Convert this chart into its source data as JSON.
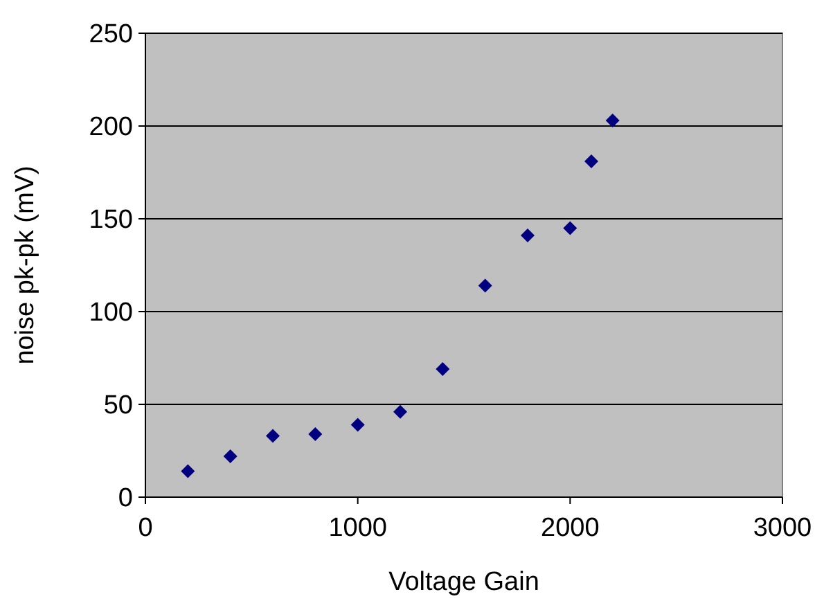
{
  "chart_data": {
    "type": "scatter",
    "xlabel": "Voltage Gain",
    "ylabel": "noise pk-pk (mV)",
    "x": [
      200,
      400,
      600,
      800,
      1000,
      1200,
      1400,
      1600,
      1800,
      2000,
      2100,
      2200
    ],
    "series": [
      {
        "color": "#000080",
        "values": [
          14,
          22,
          33,
          34,
          39,
          46,
          69,
          114,
          141,
          145,
          181,
          203
        ]
      }
    ],
    "xlim": [
      0,
      3000
    ],
    "xticks": [
      0,
      1000,
      2000,
      3000
    ],
    "ylim": [
      0,
      250
    ],
    "yticks": [
      0,
      50,
      100,
      150,
      200,
      250
    ],
    "grid": "y",
    "marker": "diamond"
  }
}
